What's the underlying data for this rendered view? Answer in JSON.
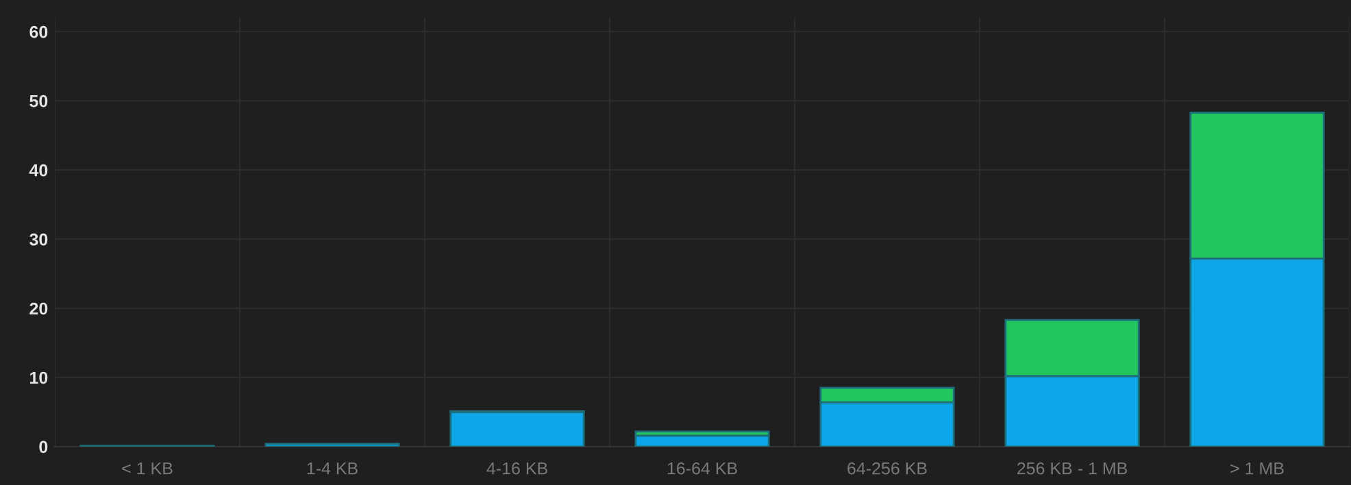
{
  "chart_data": {
    "type": "bar",
    "stacked": true,
    "categories": [
      "< 1 KB",
      "1-4 KB",
      "4-16 KB",
      "16-64 KB",
      "64-256 KB",
      "256 KB - 1 MB",
      "> 1 MB"
    ],
    "series": [
      {
        "color": "#0ea5e9",
        "values": [
          0.1,
          0.4,
          5.0,
          1.6,
          6.4,
          10.2,
          27.2
        ]
      },
      {
        "color": "#22c55e",
        "values": [
          null,
          null,
          0.1,
          0.6,
          2.1,
          8.1,
          21.1
        ]
      }
    ],
    "ylim": [
      0,
      62
    ],
    "yticks": [
      0,
      10,
      20,
      30,
      40,
      50,
      60
    ],
    "grid": true
  }
}
